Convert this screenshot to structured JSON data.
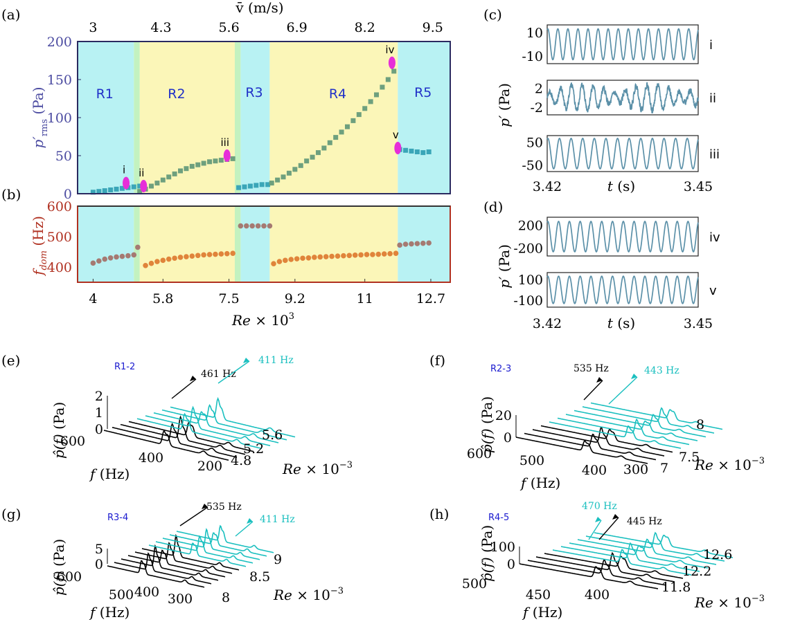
{
  "colors": {
    "cyan_region": "#b8f2f3",
    "yellow_region": "#fbf6b8",
    "green_edge": "#c3f2c0",
    "prms_axis": "#4a4aa0",
    "fdom_axis": "#b03020",
    "prms_marker_cyan": "#3aa6b8",
    "prms_marker_green": "#6ea07e",
    "fdom_marker_grey": "#a57a72",
    "fdom_marker_orange": "#e0843a",
    "highlight": "#e62ed8",
    "signal": "#5b90a8",
    "waterfall_black": "#000000",
    "waterfall_cyan": "#1abfbf",
    "region_label": "#2030c8",
    "spec_label": "#1a1acf"
  },
  "chart_data": [
    {
      "id": "a",
      "panel_label": "(a)",
      "type": "scatter",
      "title": "",
      "top_axis_label": "v̄ (m/s)",
      "top_ticks": [
        "3",
        "4.3",
        "5.6",
        "6.9",
        "8.2",
        "9.5"
      ],
      "top_tick_re": [
        4.0,
        5.75,
        7.5,
        9.25,
        11.0,
        12.75
      ],
      "ylabel": "p′rms (Pa)",
      "ylabel_main": "p′",
      "ylabel_sub": "rms",
      "ylabel_unit": "(Pa)",
      "yticks": [
        "200",
        "150",
        "100",
        "50",
        "0"
      ],
      "ylim": [
        0,
        200
      ],
      "xlim": [
        3.6,
        13.2
      ],
      "regions": [
        {
          "label": "R1",
          "x0": 3.6,
          "x1": 5.05,
          "color": "cyan"
        },
        {
          "label": "R2",
          "x0": 5.2,
          "x1": 7.65,
          "color": "yellow"
        },
        {
          "label": "R3",
          "x0": 7.8,
          "x1": 8.55,
          "color": "cyan"
        },
        {
          "label": "R4",
          "x0": 8.55,
          "x1": 11.85,
          "color": "yellow"
        },
        {
          "label": "R5",
          "x0": 11.85,
          "x1": 13.2,
          "color": "cyan"
        }
      ],
      "series": [
        {
          "name": "R1",
          "color": "cyan",
          "x": [
            4.0,
            4.15,
            4.3,
            4.45,
            4.6,
            4.75,
            4.9,
            5.05,
            5.2
          ],
          "y": [
            2,
            3,
            4,
            5,
            6,
            7,
            8,
            9,
            10
          ]
        },
        {
          "name": "R2",
          "color": "green",
          "x": [
            5.2,
            5.35,
            5.5,
            5.65,
            5.8,
            5.95,
            6.1,
            6.25,
            6.4,
            6.55,
            6.7,
            6.85,
            7.0,
            7.15,
            7.3,
            7.45,
            7.6
          ],
          "y": [
            3,
            6,
            10,
            14,
            18,
            22,
            26,
            30,
            33,
            36,
            38,
            40,
            42,
            43,
            44,
            45,
            46
          ]
        },
        {
          "name": "R3",
          "color": "cyan",
          "x": [
            7.75,
            7.9,
            8.05,
            8.2,
            8.35,
            8.5
          ],
          "y": [
            8,
            9,
            10,
            11,
            12,
            12
          ]
        },
        {
          "name": "R4",
          "color": "green",
          "x": [
            8.6,
            8.75,
            8.9,
            9.05,
            9.2,
            9.35,
            9.5,
            9.65,
            9.8,
            9.95,
            10.1,
            10.25,
            10.4,
            10.55,
            10.7,
            10.85,
            11.0,
            11.15,
            11.3,
            11.45,
            11.6,
            11.75
          ],
          "y": [
            14,
            18,
            22,
            27,
            32,
            37,
            43,
            48,
            54,
            60,
            67,
            74,
            81,
            88,
            96,
            104,
            112,
            121,
            130,
            140,
            150,
            161
          ]
        },
        {
          "name": "R5",
          "color": "cyan",
          "x": [
            11.9,
            12.05,
            12.2,
            12.35,
            12.5,
            12.65
          ],
          "y": [
            58,
            57,
            56,
            55,
            54,
            55
          ]
        }
      ],
      "highlights": [
        {
          "label": "i",
          "x": 4.85,
          "y": 14
        },
        {
          "label": "ii",
          "x": 5.3,
          "y": 10
        },
        {
          "label": "iii",
          "x": 7.45,
          "y": 50
        },
        {
          "label": "iv",
          "x": 11.7,
          "y": 172
        },
        {
          "label": "v",
          "x": 11.85,
          "y": 60
        }
      ],
      "region_labels": [
        "R1",
        "R2",
        "R3",
        "R4",
        "R5"
      ]
    },
    {
      "id": "b",
      "panel_label": "(b)",
      "type": "scatter",
      "ylabel": "fdom (Hz)",
      "ylabel_main": "f",
      "ylabel_sub": "dom",
      "ylabel_unit": "(Hz)",
      "yticks": [
        "600",
        "500",
        "400"
      ],
      "ylim": [
        350,
        600
      ],
      "xlabel": "Re × 10³",
      "xlabel_main": "Re",
      "xlabel_mult": "× 10",
      "xlabel_exp": "3",
      "xticks": [
        "4",
        "5.8",
        "7.5",
        "9.2",
        "11",
        "12.7"
      ],
      "xtick_values": [
        4.0,
        5.8,
        7.5,
        9.2,
        11.0,
        12.7
      ],
      "xlim": [
        3.6,
        13.2
      ],
      "series": [
        {
          "name": "R1",
          "color": "grey",
          "x": [
            4.0,
            4.15,
            4.3,
            4.45,
            4.6,
            4.75,
            4.9,
            5.05
          ],
          "y": [
            413,
            420,
            426,
            430,
            433,
            435,
            437,
            440
          ]
        },
        {
          "name": "R1-edge",
          "color": "grey",
          "x": [
            5.15
          ],
          "y": [
            465
          ]
        },
        {
          "name": "R2",
          "color": "orange",
          "x": [
            5.35,
            5.5,
            5.65,
            5.8,
            5.95,
            6.1,
            6.25,
            6.4,
            6.55,
            6.7,
            6.85,
            7.0,
            7.15,
            7.3,
            7.45,
            7.6
          ],
          "y": [
            405,
            412,
            418,
            422,
            426,
            429,
            432,
            434,
            436,
            438,
            440,
            441,
            442,
            443,
            444,
            445
          ]
        },
        {
          "name": "R3",
          "color": "grey",
          "x": [
            7.8,
            7.95,
            8.1,
            8.25,
            8.4,
            8.55
          ],
          "y": [
            535,
            535,
            535,
            535,
            535,
            535
          ]
        },
        {
          "name": "R4",
          "color": "orange",
          "x": [
            8.65,
            8.8,
            8.95,
            9.1,
            9.25,
            9.4,
            9.55,
            9.7,
            9.85,
            10.0,
            10.15,
            10.3,
            10.45,
            10.6,
            10.75,
            10.9,
            11.05,
            11.2,
            11.35,
            11.5,
            11.65,
            11.8
          ],
          "y": [
            411,
            418,
            422,
            425,
            427,
            429,
            430,
            432,
            433,
            434,
            435,
            436,
            437,
            438,
            439,
            440,
            441,
            441,
            442,
            443,
            444,
            445
          ]
        },
        {
          "name": "R5",
          "color": "grey",
          "x": [
            11.9,
            12.05,
            12.2,
            12.35,
            12.5,
            12.65
          ],
          "y": [
            472,
            475,
            476,
            477,
            478,
            479
          ]
        }
      ]
    },
    {
      "id": "c",
      "panel_label": "(c)",
      "type": "line",
      "xlabel": "t (s)",
      "xlabel_main": "t",
      "xlabel_unit": "(s)",
      "ylabel": "p′ (Pa)",
      "ylabel_main": "p′",
      "ylabel_unit": "(Pa)",
      "xlim": [
        3.42,
        3.45
      ],
      "xticks": [
        "3.42",
        "3.45"
      ],
      "rows": [
        {
          "label": "i",
          "yticks": [
            "10",
            "-10"
          ],
          "amplitude": 12,
          "ylim": [
            -15,
            15
          ],
          "cycles": 15,
          "noisy": false
        },
        {
          "label": "ii",
          "yticks": [
            "2",
            "-2"
          ],
          "amplitude": 2.2,
          "ylim": [
            -3,
            3
          ],
          "cycles": 14,
          "noisy": true
        },
        {
          "label": "iii",
          "yticks": [
            "50",
            "-50"
          ],
          "amplitude": 55,
          "ylim": [
            -65,
            65
          ],
          "cycles": 13,
          "noisy": false
        }
      ]
    },
    {
      "id": "d",
      "panel_label": "(d)",
      "type": "line",
      "xlabel": "t (s)",
      "xlabel_main": "t",
      "xlabel_unit": "(s)",
      "ylabel": "p′ (Pa)",
      "ylabel_main": "p′",
      "ylabel_unit": "(Pa)",
      "xlim": [
        3.42,
        3.45
      ],
      "xticks": [
        "3.42",
        "3.45"
      ],
      "rows": [
        {
          "label": "iv",
          "yticks": [
            "200",
            "-200"
          ],
          "amplitude": 220,
          "ylim": [
            -280,
            280
          ],
          "cycles": 14,
          "noisy": false
        },
        {
          "label": "v",
          "yticks": [
            "100",
            "-100"
          ],
          "amplitude": 95,
          "ylim": [
            -120,
            120
          ],
          "cycles": 14,
          "noisy": false
        }
      ]
    },
    {
      "id": "e",
      "panel_label": "(e)",
      "type": "waterfall",
      "tag": "R1-2",
      "black_peak_label": "461 Hz",
      "cyan_peak_label": "411 Hz",
      "z_ticks": [
        "2",
        "1",
        "0"
      ],
      "f_ticks": [
        "600",
        "400",
        "200"
      ],
      "re_ticks": [
        "4.8",
        "5.2",
        "5.6"
      ],
      "xlabel_main": "f",
      "xlabel_unit": "(Hz)",
      "ylabel_main": "p̂(f)",
      "ylabel_unit": "(Pa)",
      "re_label_main": "Re",
      "re_label_mult": "× 10",
      "re_label_exp": "−3",
      "n_black": 4,
      "n_cyan": 5
    },
    {
      "id": "f",
      "panel_label": "(f)",
      "type": "waterfall",
      "tag": "R2-3",
      "black_peak_label": "535 Hz",
      "cyan_peak_label": "443 Hz",
      "z_ticks": [
        "20",
        "0"
      ],
      "f_ticks": [
        "600",
        "500",
        "400",
        "300"
      ],
      "re_ticks": [
        "7",
        "7.5",
        "8"
      ],
      "xlabel_main": "f",
      "xlabel_unit": "(Hz)",
      "ylabel_main": "p̂(f)",
      "ylabel_unit": "(Pa)",
      "re_label_main": "Re",
      "re_label_mult": "× 10",
      "re_label_exp": "−3",
      "n_black": 4,
      "n_cyan": 6
    },
    {
      "id": "g",
      "panel_label": "(g)",
      "type": "waterfall",
      "tag": "R3-4",
      "black_peak_label": "535 Hz",
      "cyan_peak_label": "411 Hz",
      "z_ticks": [
        "5",
        "0"
      ],
      "f_ticks": [
        "600",
        "500",
        "400",
        "300"
      ],
      "re_ticks": [
        "8",
        "8.5",
        "9"
      ],
      "xlabel_main": "f",
      "xlabel_unit": "(Hz)",
      "ylabel_main": "p̂(f)",
      "ylabel_unit": "(Pa)",
      "re_label_main": "Re",
      "re_label_mult": "× 10",
      "re_label_exp": "−3",
      "n_black": 6,
      "n_cyan": 5
    },
    {
      "id": "h",
      "panel_label": "(h)",
      "type": "waterfall",
      "tag": "R4-5",
      "black_peak_label": "445 Hz",
      "cyan_peak_label": "470 Hz",
      "z_ticks": [
        "100",
        "0"
      ],
      "f_ticks": [
        "500",
        "450",
        "400"
      ],
      "re_ticks": [
        "11.8",
        "12.2",
        "12.6"
      ],
      "xlabel_main": "f",
      "xlabel_unit": "(Hz)",
      "ylabel_main": "p̂(f)",
      "ylabel_unit": "(Pa)",
      "re_label_main": "Re",
      "re_label_mult": "× 10",
      "re_label_exp": "−3",
      "n_black": 4,
      "n_cyan": 6
    }
  ]
}
